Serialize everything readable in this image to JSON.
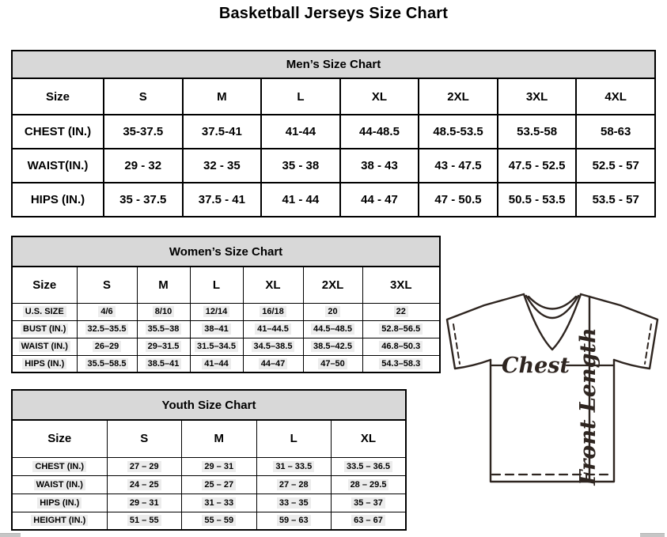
{
  "page_title": "Basketball Jerseys Size Chart",
  "mens_chart": {
    "title": "Men’s Size Chart",
    "columns": [
      "Size",
      "S",
      "M",
      "L",
      "XL",
      "2XL",
      "3XL",
      "4XL"
    ],
    "rows": [
      {
        "label": "CHEST (IN.)",
        "values": [
          "35-37.5",
          "37.5-41",
          "41-44",
          "44-48.5",
          "48.5-53.5",
          "53.5-58",
          "58-63"
        ]
      },
      {
        "label": "WAIST(IN.)",
        "values": [
          "29 - 32",
          "32 - 35",
          "35 - 38",
          "38 - 43",
          "43 - 47.5",
          "47.5 - 52.5",
          "52.5 - 57"
        ]
      },
      {
        "label": "HIPS (IN.)",
        "values": [
          "35 - 37.5",
          "37.5 - 41",
          "41 - 44",
          "44 - 47",
          "47 - 50.5",
          "50.5 - 53.5",
          "53.5 - 57"
        ]
      }
    ]
  },
  "womens_chart": {
    "title": "Women’s Size Chart",
    "columns": [
      "Size",
      "S",
      "M",
      "L",
      "XL",
      "2XL",
      "3XL"
    ],
    "rows": [
      {
        "label": "U.S. SIZE",
        "values": [
          "4/6",
          "8/10",
          "12/14",
          "16/18",
          "20",
          "22"
        ]
      },
      {
        "label": "BUST (IN.)",
        "values": [
          "32.5–35.5",
          "35.5–38",
          "38–41",
          "41–44.5",
          "44.5–48.5",
          "52.8–56.5"
        ]
      },
      {
        "label": "WAIST (IN.)",
        "values": [
          "26–29",
          "29–31.5",
          "31.5–34.5",
          "34.5–38.5",
          "38.5–42.5",
          "46.8–50.3"
        ]
      },
      {
        "label": "HIPS (IN.)",
        "values": [
          "35.5–58.5",
          "38.5–41",
          "41–44",
          "44–47",
          "47–50",
          "54.3–58.3"
        ]
      }
    ]
  },
  "youth_chart": {
    "title": "Youth Size Chart",
    "columns": [
      "Size",
      "S",
      "M",
      "L",
      "XL"
    ],
    "rows": [
      {
        "label": "CHEST (IN.)",
        "values": [
          "27 – 29",
          "29 – 31",
          "31 – 33.5",
          "33.5 – 36.5"
        ]
      },
      {
        "label": "WAIST (IN.)",
        "values": [
          "24 – 25",
          "25 – 27",
          "27 – 28",
          "28 – 29.5"
        ]
      },
      {
        "label": "HIPS (IN.)",
        "values": [
          "29 – 31",
          "31 – 33",
          "33 – 35",
          "35 – 37"
        ]
      },
      {
        "label": "HEIGHT (IN.)",
        "values": [
          "51 – 55",
          "55 – 59",
          "59 – 63",
          "63 – 67"
        ]
      }
    ]
  },
  "diagram": {
    "chest_label": "Chest",
    "front_length_label": "Front Length"
  },
  "colors": {
    "table_header_bg": "#d8d8d8",
    "border": "#000000",
    "highlight": "#ececec",
    "diagram_stroke": "#2e2520",
    "scrollbar_fragment": "#c6c6c6"
  }
}
